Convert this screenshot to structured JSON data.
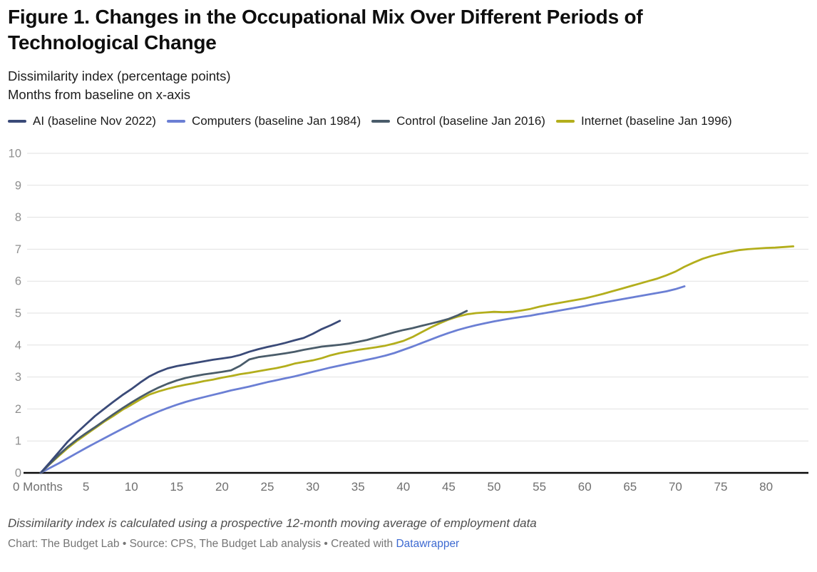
{
  "title": "Figure 1. Changes in the Occupational Mix Over Different Periods of Technological Change",
  "subtitle_line1": "Dissimilarity index (percentage points)",
  "subtitle_line2": "Months from baseline on x-axis",
  "footer": {
    "note": "Dissimilarity index is calculated using a prospective 12-month moving average of employment data",
    "credit_prefix": "Chart: The Budget Lab • Source: CPS, The Budget Lab analysis • Created with ",
    "credit_link": "Datawrapper"
  },
  "colors": {
    "ai": "#3a4a78",
    "computers": "#6b7fd4",
    "control": "#4a5c6a",
    "internet": "#b3ae1c",
    "gridline": "#e1e1e1",
    "baseline": "#0a0a0a",
    "link": "#3d6ad1"
  },
  "chart_data": {
    "type": "line",
    "title": "Changes in the Occupational Mix Over Different Periods of Technological Change",
    "xlabel": "Months from baseline",
    "ylabel": "Dissimilarity index (percentage points)",
    "xlim": [
      0,
      84
    ],
    "ylim": [
      0,
      10
    ],
    "grid": "horizontal",
    "legend_position": "top",
    "y_ticks": [
      0,
      1,
      2,
      3,
      4,
      5,
      6,
      7,
      8,
      9,
      10
    ],
    "x_ticks": [
      0,
      5,
      10,
      15,
      20,
      25,
      30,
      35,
      40,
      45,
      50,
      55,
      60,
      65,
      70,
      75,
      80
    ],
    "x_tick_labels": [
      "0 Months",
      "5",
      "10",
      "15",
      "20",
      "25",
      "30",
      "35",
      "40",
      "45",
      "50",
      "55",
      "60",
      "65",
      "70",
      "75",
      "80"
    ],
    "series": [
      {
        "key": "ai",
        "name": "AI (baseline Nov 2022)",
        "color": "#3a4a78",
        "points": [
          [
            0,
            0
          ],
          [
            1,
            0.32
          ],
          [
            2,
            0.65
          ],
          [
            3,
            0.98
          ],
          [
            4,
            1.26
          ],
          [
            5,
            1.52
          ],
          [
            6,
            1.78
          ],
          [
            7,
            2.0
          ],
          [
            8,
            2.22
          ],
          [
            9,
            2.43
          ],
          [
            10,
            2.62
          ],
          [
            11,
            2.83
          ],
          [
            12,
            3.02
          ],
          [
            13,
            3.16
          ],
          [
            14,
            3.27
          ],
          [
            15,
            3.34
          ],
          [
            16,
            3.39
          ],
          [
            17,
            3.44
          ],
          [
            18,
            3.49
          ],
          [
            19,
            3.54
          ],
          [
            20,
            3.58
          ],
          [
            21,
            3.62
          ],
          [
            22,
            3.69
          ],
          [
            23,
            3.79
          ],
          [
            24,
            3.87
          ],
          [
            25,
            3.94
          ],
          [
            26,
            4.0
          ],
          [
            27,
            4.07
          ],
          [
            28,
            4.15
          ],
          [
            29,
            4.22
          ],
          [
            30,
            4.35
          ],
          [
            31,
            4.5
          ],
          [
            32,
            4.62
          ],
          [
            33,
            4.76
          ]
        ]
      },
      {
        "key": "computers",
        "name": "Computers (baseline Jan 1984)",
        "color": "#6b7fd4",
        "points": [
          [
            0,
            0
          ],
          [
            1,
            0.15
          ],
          [
            2,
            0.3
          ],
          [
            3,
            0.46
          ],
          [
            4,
            0.62
          ],
          [
            5,
            0.78
          ],
          [
            6,
            0.93
          ],
          [
            7,
            1.08
          ],
          [
            8,
            1.23
          ],
          [
            9,
            1.38
          ],
          [
            10,
            1.52
          ],
          [
            11,
            1.67
          ],
          [
            12,
            1.8
          ],
          [
            13,
            1.92
          ],
          [
            14,
            2.03
          ],
          [
            15,
            2.13
          ],
          [
            16,
            2.22
          ],
          [
            17,
            2.3
          ],
          [
            18,
            2.37
          ],
          [
            19,
            2.44
          ],
          [
            20,
            2.51
          ],
          [
            21,
            2.58
          ],
          [
            22,
            2.64
          ],
          [
            23,
            2.7
          ],
          [
            24,
            2.77
          ],
          [
            25,
            2.84
          ],
          [
            26,
            2.9
          ],
          [
            27,
            2.96
          ],
          [
            28,
            3.02
          ],
          [
            29,
            3.09
          ],
          [
            30,
            3.16
          ],
          [
            31,
            3.23
          ],
          [
            32,
            3.3
          ],
          [
            33,
            3.36
          ],
          [
            34,
            3.42
          ],
          [
            35,
            3.48
          ],
          [
            36,
            3.54
          ],
          [
            37,
            3.6
          ],
          [
            38,
            3.67
          ],
          [
            39,
            3.75
          ],
          [
            40,
            3.85
          ],
          [
            41,
            3.95
          ],
          [
            42,
            4.06
          ],
          [
            43,
            4.17
          ],
          [
            44,
            4.28
          ],
          [
            45,
            4.38
          ],
          [
            46,
            4.47
          ],
          [
            47,
            4.55
          ],
          [
            48,
            4.62
          ],
          [
            49,
            4.68
          ],
          [
            50,
            4.74
          ],
          [
            51,
            4.79
          ],
          [
            52,
            4.84
          ],
          [
            53,
            4.88
          ],
          [
            54,
            4.92
          ],
          [
            55,
            4.97
          ],
          [
            56,
            5.02
          ],
          [
            57,
            5.07
          ],
          [
            58,
            5.12
          ],
          [
            59,
            5.17
          ],
          [
            60,
            5.22
          ],
          [
            61,
            5.28
          ],
          [
            62,
            5.33
          ],
          [
            63,
            5.38
          ],
          [
            64,
            5.43
          ],
          [
            65,
            5.48
          ],
          [
            66,
            5.53
          ],
          [
            67,
            5.58
          ],
          [
            68,
            5.63
          ],
          [
            69,
            5.68
          ],
          [
            70,
            5.75
          ],
          [
            71,
            5.84
          ]
        ]
      },
      {
        "key": "control",
        "name": "Control (baseline Jan 2016)",
        "color": "#4a5c6a",
        "points": [
          [
            0,
            0
          ],
          [
            1,
            0.28
          ],
          [
            2,
            0.56
          ],
          [
            3,
            0.82
          ],
          [
            4,
            1.04
          ],
          [
            5,
            1.24
          ],
          [
            6,
            1.43
          ],
          [
            7,
            1.63
          ],
          [
            8,
            1.83
          ],
          [
            9,
            2.02
          ],
          [
            10,
            2.2
          ],
          [
            11,
            2.37
          ],
          [
            12,
            2.53
          ],
          [
            13,
            2.67
          ],
          [
            14,
            2.79
          ],
          [
            15,
            2.89
          ],
          [
            16,
            2.97
          ],
          [
            17,
            3.03
          ],
          [
            18,
            3.08
          ],
          [
            19,
            3.12
          ],
          [
            20,
            3.16
          ],
          [
            21,
            3.21
          ],
          [
            22,
            3.35
          ],
          [
            23,
            3.55
          ],
          [
            24,
            3.62
          ],
          [
            25,
            3.66
          ],
          [
            26,
            3.7
          ],
          [
            27,
            3.74
          ],
          [
            28,
            3.79
          ],
          [
            29,
            3.85
          ],
          [
            30,
            3.9
          ],
          [
            31,
            3.95
          ],
          [
            32,
            3.98
          ],
          [
            33,
            4.01
          ],
          [
            34,
            4.05
          ],
          [
            35,
            4.1
          ],
          [
            36,
            4.16
          ],
          [
            37,
            4.24
          ],
          [
            38,
            4.32
          ],
          [
            39,
            4.4
          ],
          [
            40,
            4.47
          ],
          [
            41,
            4.53
          ],
          [
            42,
            4.6
          ],
          [
            43,
            4.67
          ],
          [
            44,
            4.74
          ],
          [
            45,
            4.82
          ],
          [
            46,
            4.93
          ],
          [
            47,
            5.07
          ]
        ]
      },
      {
        "key": "internet",
        "name": "Internet (baseline Jan 1996)",
        "color": "#b3ae1c",
        "points": [
          [
            0,
            0
          ],
          [
            1,
            0.27
          ],
          [
            2,
            0.53
          ],
          [
            3,
            0.78
          ],
          [
            4,
            1.0
          ],
          [
            5,
            1.2
          ],
          [
            6,
            1.4
          ],
          [
            7,
            1.6
          ],
          [
            8,
            1.78
          ],
          [
            9,
            1.97
          ],
          [
            10,
            2.13
          ],
          [
            11,
            2.3
          ],
          [
            12,
            2.45
          ],
          [
            13,
            2.55
          ],
          [
            14,
            2.63
          ],
          [
            15,
            2.7
          ],
          [
            16,
            2.76
          ],
          [
            17,
            2.81
          ],
          [
            18,
            2.87
          ],
          [
            19,
            2.92
          ],
          [
            20,
            2.98
          ],
          [
            21,
            3.03
          ],
          [
            22,
            3.09
          ],
          [
            23,
            3.13
          ],
          [
            24,
            3.18
          ],
          [
            25,
            3.23
          ],
          [
            26,
            3.28
          ],
          [
            27,
            3.34
          ],
          [
            28,
            3.42
          ],
          [
            29,
            3.47
          ],
          [
            30,
            3.52
          ],
          [
            31,
            3.59
          ],
          [
            32,
            3.68
          ],
          [
            33,
            3.75
          ],
          [
            34,
            3.8
          ],
          [
            35,
            3.85
          ],
          [
            36,
            3.89
          ],
          [
            37,
            3.93
          ],
          [
            38,
            3.98
          ],
          [
            39,
            4.05
          ],
          [
            40,
            4.13
          ],
          [
            41,
            4.25
          ],
          [
            42,
            4.4
          ],
          [
            43,
            4.55
          ],
          [
            44,
            4.68
          ],
          [
            45,
            4.8
          ],
          [
            46,
            4.89
          ],
          [
            47,
            4.96
          ],
          [
            48,
            5.0
          ],
          [
            49,
            5.02
          ],
          [
            50,
            5.04
          ],
          [
            51,
            5.03
          ],
          [
            52,
            5.04
          ],
          [
            53,
            5.08
          ],
          [
            54,
            5.13
          ],
          [
            55,
            5.2
          ],
          [
            56,
            5.26
          ],
          [
            57,
            5.31
          ],
          [
            58,
            5.36
          ],
          [
            59,
            5.41
          ],
          [
            60,
            5.46
          ],
          [
            61,
            5.53
          ],
          [
            62,
            5.6
          ],
          [
            63,
            5.68
          ],
          [
            64,
            5.76
          ],
          [
            65,
            5.84
          ],
          [
            66,
            5.92
          ],
          [
            67,
            6.0
          ],
          [
            68,
            6.08
          ],
          [
            69,
            6.18
          ],
          [
            70,
            6.3
          ],
          [
            71,
            6.45
          ],
          [
            72,
            6.58
          ],
          [
            73,
            6.7
          ],
          [
            74,
            6.79
          ],
          [
            75,
            6.86
          ],
          [
            76,
            6.92
          ],
          [
            77,
            6.97
          ],
          [
            78,
            7.0
          ],
          [
            79,
            7.02
          ],
          [
            80,
            7.04
          ],
          [
            81,
            7.05
          ],
          [
            82,
            7.07
          ],
          [
            83,
            7.09
          ]
        ]
      }
    ]
  }
}
